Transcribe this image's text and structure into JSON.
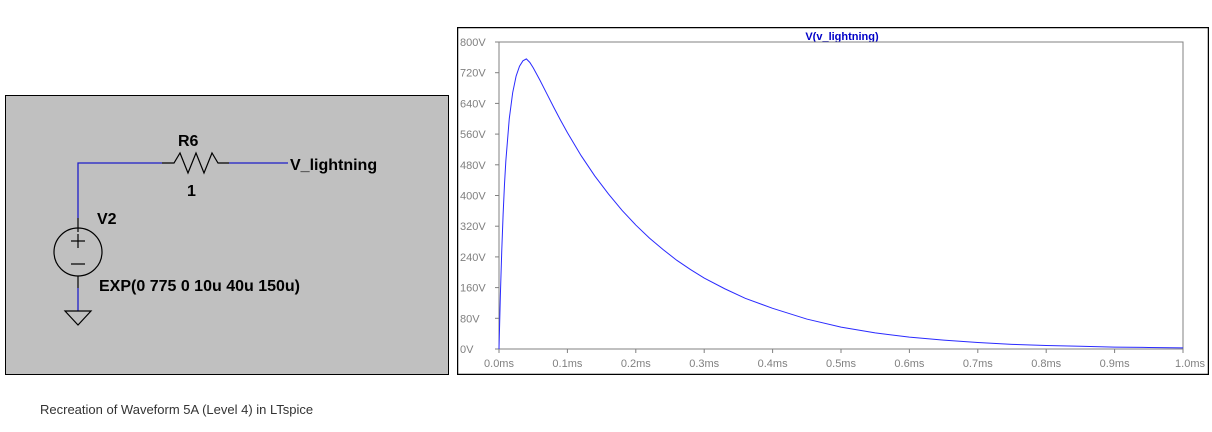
{
  "schematic": {
    "resistor_name": "R6",
    "resistor_value": "1",
    "net_label": "V_lightning",
    "source_name": "V2",
    "source_value": "EXP(0 775 0 10u 40u 150u)",
    "background_color": "#c0c0c0",
    "wire_color": "#1e1ec8"
  },
  "chart_data": {
    "type": "line",
    "title": "V(v_lightning)",
    "xlabel": "",
    "ylabel": "",
    "xlim": [
      0,
      1.0
    ],
    "ylim": [
      0,
      800
    ],
    "x_ticks": [
      0,
      0.1,
      0.2,
      0.3,
      0.4,
      0.5,
      0.6,
      0.7,
      0.8,
      0.9,
      1.0
    ],
    "x_tick_labels": [
      "0.0ms",
      "0.1ms",
      "0.2ms",
      "0.3ms",
      "0.4ms",
      "0.5ms",
      "0.6ms",
      "0.7ms",
      "0.8ms",
      "0.9ms",
      "1.0ms"
    ],
    "y_ticks": [
      0,
      80,
      160,
      240,
      320,
      400,
      480,
      560,
      640,
      720,
      800
    ],
    "y_tick_labels": [
      "0V",
      "80V",
      "160V",
      "240V",
      "320V",
      "400V",
      "480V",
      "560V",
      "640V",
      "720V",
      "800V"
    ],
    "grid": false,
    "line_color": "#2a2aff",
    "series": [
      {
        "x": [
          0,
          0.002,
          0.004,
          0.006,
          0.008,
          0.01,
          0.015,
          0.02,
          0.025,
          0.03,
          0.035,
          0.04,
          0.045,
          0.05,
          0.06,
          0.07,
          0.08,
          0.09,
          0.1,
          0.12,
          0.14,
          0.16,
          0.18,
          0.2,
          0.22,
          0.24,
          0.26,
          0.28,
          0.3,
          0.33,
          0.36,
          0.4,
          0.45,
          0.5,
          0.55,
          0.6,
          0.65,
          0.7,
          0.75,
          0.8,
          0.85,
          0.9,
          0.95,
          1.0
        ],
        "y": [
          0,
          140,
          255,
          350,
          428,
          490,
          600,
          668,
          711,
          737,
          751,
          756,
          747,
          733,
          700,
          665,
          630,
          596,
          564,
          504,
          451,
          404,
          361,
          323,
          289,
          259,
          231,
          207,
          185,
          157,
          132,
          106,
          78,
          57,
          42,
          31,
          23,
          17,
          12,
          9,
          7,
          5,
          4,
          3
        ]
      }
    ]
  },
  "caption": "Recreation of Waveform 5A (Level 4) in LTspice"
}
